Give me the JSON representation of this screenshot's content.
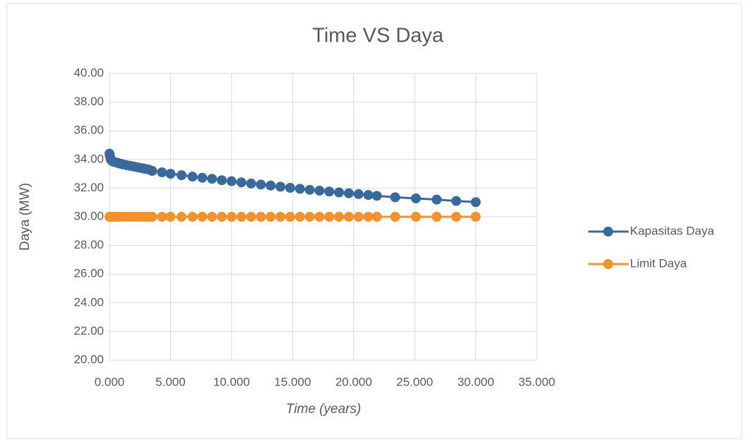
{
  "chart_data": {
    "type": "scatter",
    "title": "Time VS Daya",
    "x_label": "Time (years)",
    "y_label": "Daya (MW)",
    "xlim": [
      0,
      35
    ],
    "xticks": [
      {
        "value": 0,
        "label": "0.000"
      },
      {
        "value": 5,
        "label": "5.000"
      },
      {
        "value": 10,
        "label": "10.000"
      },
      {
        "value": 15,
        "label": "15.000"
      },
      {
        "value": 20,
        "label": "20.000"
      },
      {
        "value": 25,
        "label": "25.000"
      },
      {
        "value": 30,
        "label": "30.000"
      },
      {
        "value": 35,
        "label": "35.000"
      }
    ],
    "ylim": [
      20,
      40
    ],
    "yticks": [
      {
        "value": 20,
        "label": "20.00"
      },
      {
        "value": 22,
        "label": "22.00"
      },
      {
        "value": 24,
        "label": "24.00"
      },
      {
        "value": 26,
        "label": "26.00"
      },
      {
        "value": 28,
        "label": "28.00"
      },
      {
        "value": 30,
        "label": "30.00"
      },
      {
        "value": 32,
        "label": "32.00"
      },
      {
        "value": 34,
        "label": "34.00"
      },
      {
        "value": 36,
        "label": "36.00"
      },
      {
        "value": 38,
        "label": "38.00"
      },
      {
        "value": 40,
        "label": "40.00"
      }
    ],
    "grid": true,
    "legend": "right",
    "x": [
      0,
      0.05,
      0.1,
      0.2,
      0.3,
      0.5,
      0.7,
      0.9,
      1.1,
      1.4,
      1.7,
      2.0,
      2.3,
      2.6,
      2.9,
      3.2,
      3.5,
      4.3,
      5.0,
      5.9,
      6.8,
      7.6,
      8.4,
      9.2,
      10.0,
      10.8,
      11.6,
      12.4,
      13.2,
      14.0,
      14.8,
      15.6,
      16.4,
      17.2,
      18.0,
      18.8,
      19.6,
      20.4,
      21.2,
      21.9,
      23.4,
      25.1,
      26.8,
      28.4,
      30.0
    ],
    "series": [
      {
        "name": "Kapasitas Daya",
        "color": "#3a6a9c",
        "values": [
          34.4,
          34.2,
          34.0,
          33.9,
          33.85,
          33.8,
          33.75,
          33.7,
          33.65,
          33.6,
          33.55,
          33.5,
          33.45,
          33.4,
          33.35,
          33.3,
          33.2,
          33.1,
          33.0,
          32.9,
          32.8,
          32.72,
          32.65,
          32.55,
          32.48,
          32.4,
          32.32,
          32.25,
          32.18,
          32.1,
          32.02,
          31.95,
          31.88,
          31.82,
          31.76,
          31.7,
          31.64,
          31.58,
          31.52,
          31.46,
          31.36,
          31.28,
          31.2,
          31.1,
          31.02
        ]
      },
      {
        "name": "Limit Daya",
        "color": "#f0922e",
        "values": [
          30,
          30,
          30,
          30,
          30,
          30,
          30,
          30,
          30,
          30,
          30,
          30,
          30,
          30,
          30,
          30,
          30,
          30,
          30,
          30,
          30,
          30,
          30,
          30,
          30,
          30,
          30,
          30,
          30,
          30,
          30,
          30,
          30,
          30,
          30,
          30,
          30,
          30,
          30,
          30,
          30,
          30,
          30,
          30,
          30
        ]
      }
    ]
  }
}
